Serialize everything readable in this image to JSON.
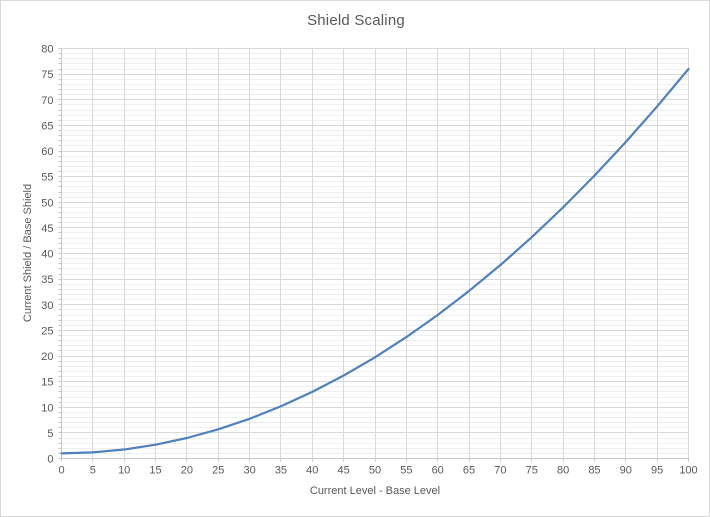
{
  "chart": {
    "title": "Shield Scaling",
    "x_axis_title": "Current Level - Base Level",
    "y_axis_title": "Current Shield / Base Shield"
  },
  "chart_data": {
    "type": "line",
    "title": "Shield Scaling",
    "xlabel": "Current Level - Base Level",
    "ylabel": "Current Shield / Base Shield",
    "xlim": [
      0,
      100
    ],
    "ylim": [
      0,
      80
    ],
    "x_tick_step": 5,
    "y_tick_step": 5,
    "y_minor_step": 1,
    "grid": "major x+y, minor y",
    "legend": "none",
    "x_ticks": [
      0,
      5,
      10,
      15,
      20,
      25,
      30,
      35,
      40,
      45,
      50,
      55,
      60,
      65,
      70,
      75,
      80,
      85,
      90,
      95,
      100
    ],
    "y_ticks": [
      0,
      5,
      10,
      15,
      20,
      25,
      30,
      35,
      40,
      45,
      50,
      55,
      60,
      65,
      70,
      75,
      80
    ],
    "x": [
      0,
      5,
      10,
      15,
      20,
      25,
      30,
      35,
      40,
      45,
      50,
      55,
      60,
      65,
      70,
      75,
      80,
      85,
      90,
      95,
      100
    ],
    "series": [
      {
        "values": [
          1,
          1.19,
          1.75,
          2.69,
          4,
          5.69,
          7.75,
          10.19,
          13,
          16.19,
          19.75,
          23.69,
          28,
          32.69,
          37.75,
          43.19,
          49,
          55.19,
          61.75,
          68.69,
          76
        ],
        "color": "#4f81bd"
      }
    ],
    "colors": {
      "line": "#4f81bd",
      "major_grid": "#d9d9d9",
      "minor_grid": "#efefef",
      "axis": "#c6c6c6",
      "text": "#595959",
      "background": "#ffffff",
      "border": "#d9d9d9"
    }
  }
}
